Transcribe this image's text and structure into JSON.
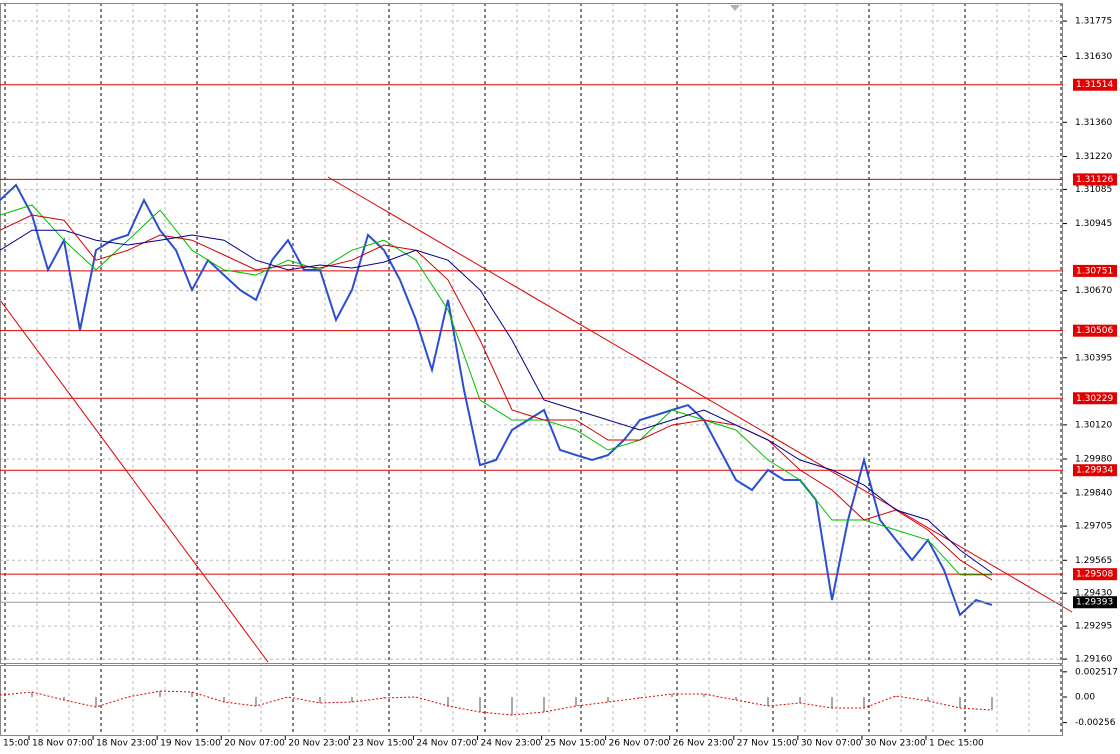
{
  "chart_data": {
    "type": "line",
    "ylim": [
      1.29144,
      1.31849
    ],
    "yticks": [
      1.31775,
      {
        "value": 1.3163,
        "label": "1.31630"
      },
      {
        "value": 1.3136,
        "label": "1.31360"
      },
      {
        "value": 1.3122,
        "label": "1.31220"
      },
      1.31085,
      1.30945,
      {
        "value": 1.3067,
        "label": "1.30670"
      },
      1.30395,
      {
        "value": 1.3012,
        "label": "1.30120"
      },
      {
        "value": 1.2998,
        "label": "1.29980"
      },
      {
        "value": 1.2984,
        "label": "1.29840"
      },
      1.29705,
      1.29565,
      {
        "value": 1.2943,
        "label": "1.29430"
      },
      1.29295,
      {
        "value": 1.2916,
        "label": "1.29160"
      }
    ],
    "grid": true,
    "x_labels": [
      "15:00",
      "18 Nov 07:00",
      "18 Nov 23:00",
      "19 Nov 15:00",
      "20 Nov 07:00",
      "20 Nov 23:00",
      "23 Nov 15:00",
      "24 Nov 07:00",
      "24 Nov 23:00",
      "25 Nov 15:00",
      "26 Nov 07:00",
      "26 Nov 23:00",
      "27 Nov 15:00",
      "30 Nov 07:00",
      "30 Nov 23:00",
      "1 Dec 15:00"
    ],
    "series": [
      {
        "color": "#2a4fd0",
        "width": 2,
        "values": [
          1.31041,
          1.31103,
          1.3098,
          1.30755,
          1.30877,
          1.30509,
          1.30836,
          1.30877,
          1.30898,
          1.31041,
          1.30918,
          1.30836,
          1.30673,
          1.30795,
          1.30734,
          1.30673,
          1.30632,
          1.30795,
          1.30877,
          1.30755,
          1.30755,
          1.3055,
          1.30673,
          1.30898,
          1.30836,
          1.30714,
          1.3055,
          1.30345,
          1.30632,
          1.30263,
          1.29955,
          1.29976,
          1.30099,
          1.3014,
          1.30181,
          1.30017,
          1.29996,
          1.29976,
          1.29996,
          1.30058,
          1.3014,
          1.3016,
          1.30181,
          1.30201,
          1.3014,
          1.30017,
          1.29894,
          1.29853,
          1.29935,
          1.29894,
          1.29894,
          1.29812,
          1.29402,
          1.2973,
          1.29976,
          1.2973,
          1.29648,
          1.29566,
          1.29648,
          1.29525,
          1.29341,
          1.29402,
          1.29382
        ]
      },
      {
        "color": "#00c000",
        "width": 1,
        "values": [
          1.3098,
          1.31021,
          1.30877,
          1.30755,
          1.30877,
          1.31,
          1.30836,
          1.30755,
          1.30734,
          1.30795,
          1.30755,
          1.30836,
          1.30877,
          1.30795,
          1.30591,
          1.30222,
          1.3014,
          1.3014,
          1.30099,
          1.30017,
          1.30058,
          1.30181,
          1.3014,
          1.30099,
          1.29976,
          1.29894,
          1.2973,
          1.2973,
          1.29689,
          1.29648,
          1.29505,
          1.29505
        ]
      },
      {
        "color": "#d00000",
        "width": 1,
        "values": [
          1.30918,
          1.3098,
          1.30959,
          1.30795,
          1.30836,
          1.30898,
          1.30877,
          1.30816,
          1.30755,
          1.30775,
          1.30763,
          1.30795,
          1.30857,
          1.30836,
          1.30714,
          1.30468,
          1.30181,
          1.3014,
          1.3014,
          1.30058,
          1.30058,
          1.30119,
          1.3014,
          1.30119,
          1.30058,
          1.29935,
          1.29853,
          1.2973,
          1.29771,
          1.29689,
          1.29566,
          1.29484
        ]
      },
      {
        "color": "#00008b",
        "width": 1,
        "values": [
          1.30836,
          1.30918,
          1.30918,
          1.30877,
          1.30857,
          1.30877,
          1.30898,
          1.30877,
          1.30795,
          1.30755,
          1.30775,
          1.30763,
          1.30787,
          1.30836,
          1.30795,
          1.30673,
          1.30468,
          1.30222,
          1.30181,
          1.3014,
          1.30099,
          1.3014,
          1.30181,
          1.30119,
          1.30058,
          1.29976,
          1.29935,
          1.29873,
          1.29771,
          1.2973,
          1.29607,
          1.29513
        ]
      }
    ],
    "levels": [
      1.31514,
      1.31126,
      1.30751,
      1.30506,
      1.30229,
      1.29934,
      1.29508
    ],
    "level_color": "#e00000",
    "last_price": 1.29393,
    "oscillator": {
      "ylim": [
        -0.0038,
        0.0032
      ],
      "yticks": [
        0.002517,
        {
          "value": 0,
          "label": "0.00"
        },
        -0.00256
      ],
      "bar_color": "#a8a8a8",
      "line_color": "#e00000",
      "values": [
        0.0002,
        0.0005,
        -0.0003,
        -0.001,
        0,
        0.0006,
        0.0005,
        -0.0005,
        -0.0009,
        0,
        -0.0006,
        -0.0005,
        -0.0001,
        0,
        -0.0009,
        -0.0015,
        -0.0018,
        -0.0015,
        -0.0009,
        -0.0005,
        -0.0001,
        0.0003,
        0.0003,
        -0.0003,
        -0.0009,
        -0.0006,
        -0.0011,
        -0.0011,
        0.0001,
        -0.0004,
        -0.0011,
        -0.0013
      ]
    }
  }
}
